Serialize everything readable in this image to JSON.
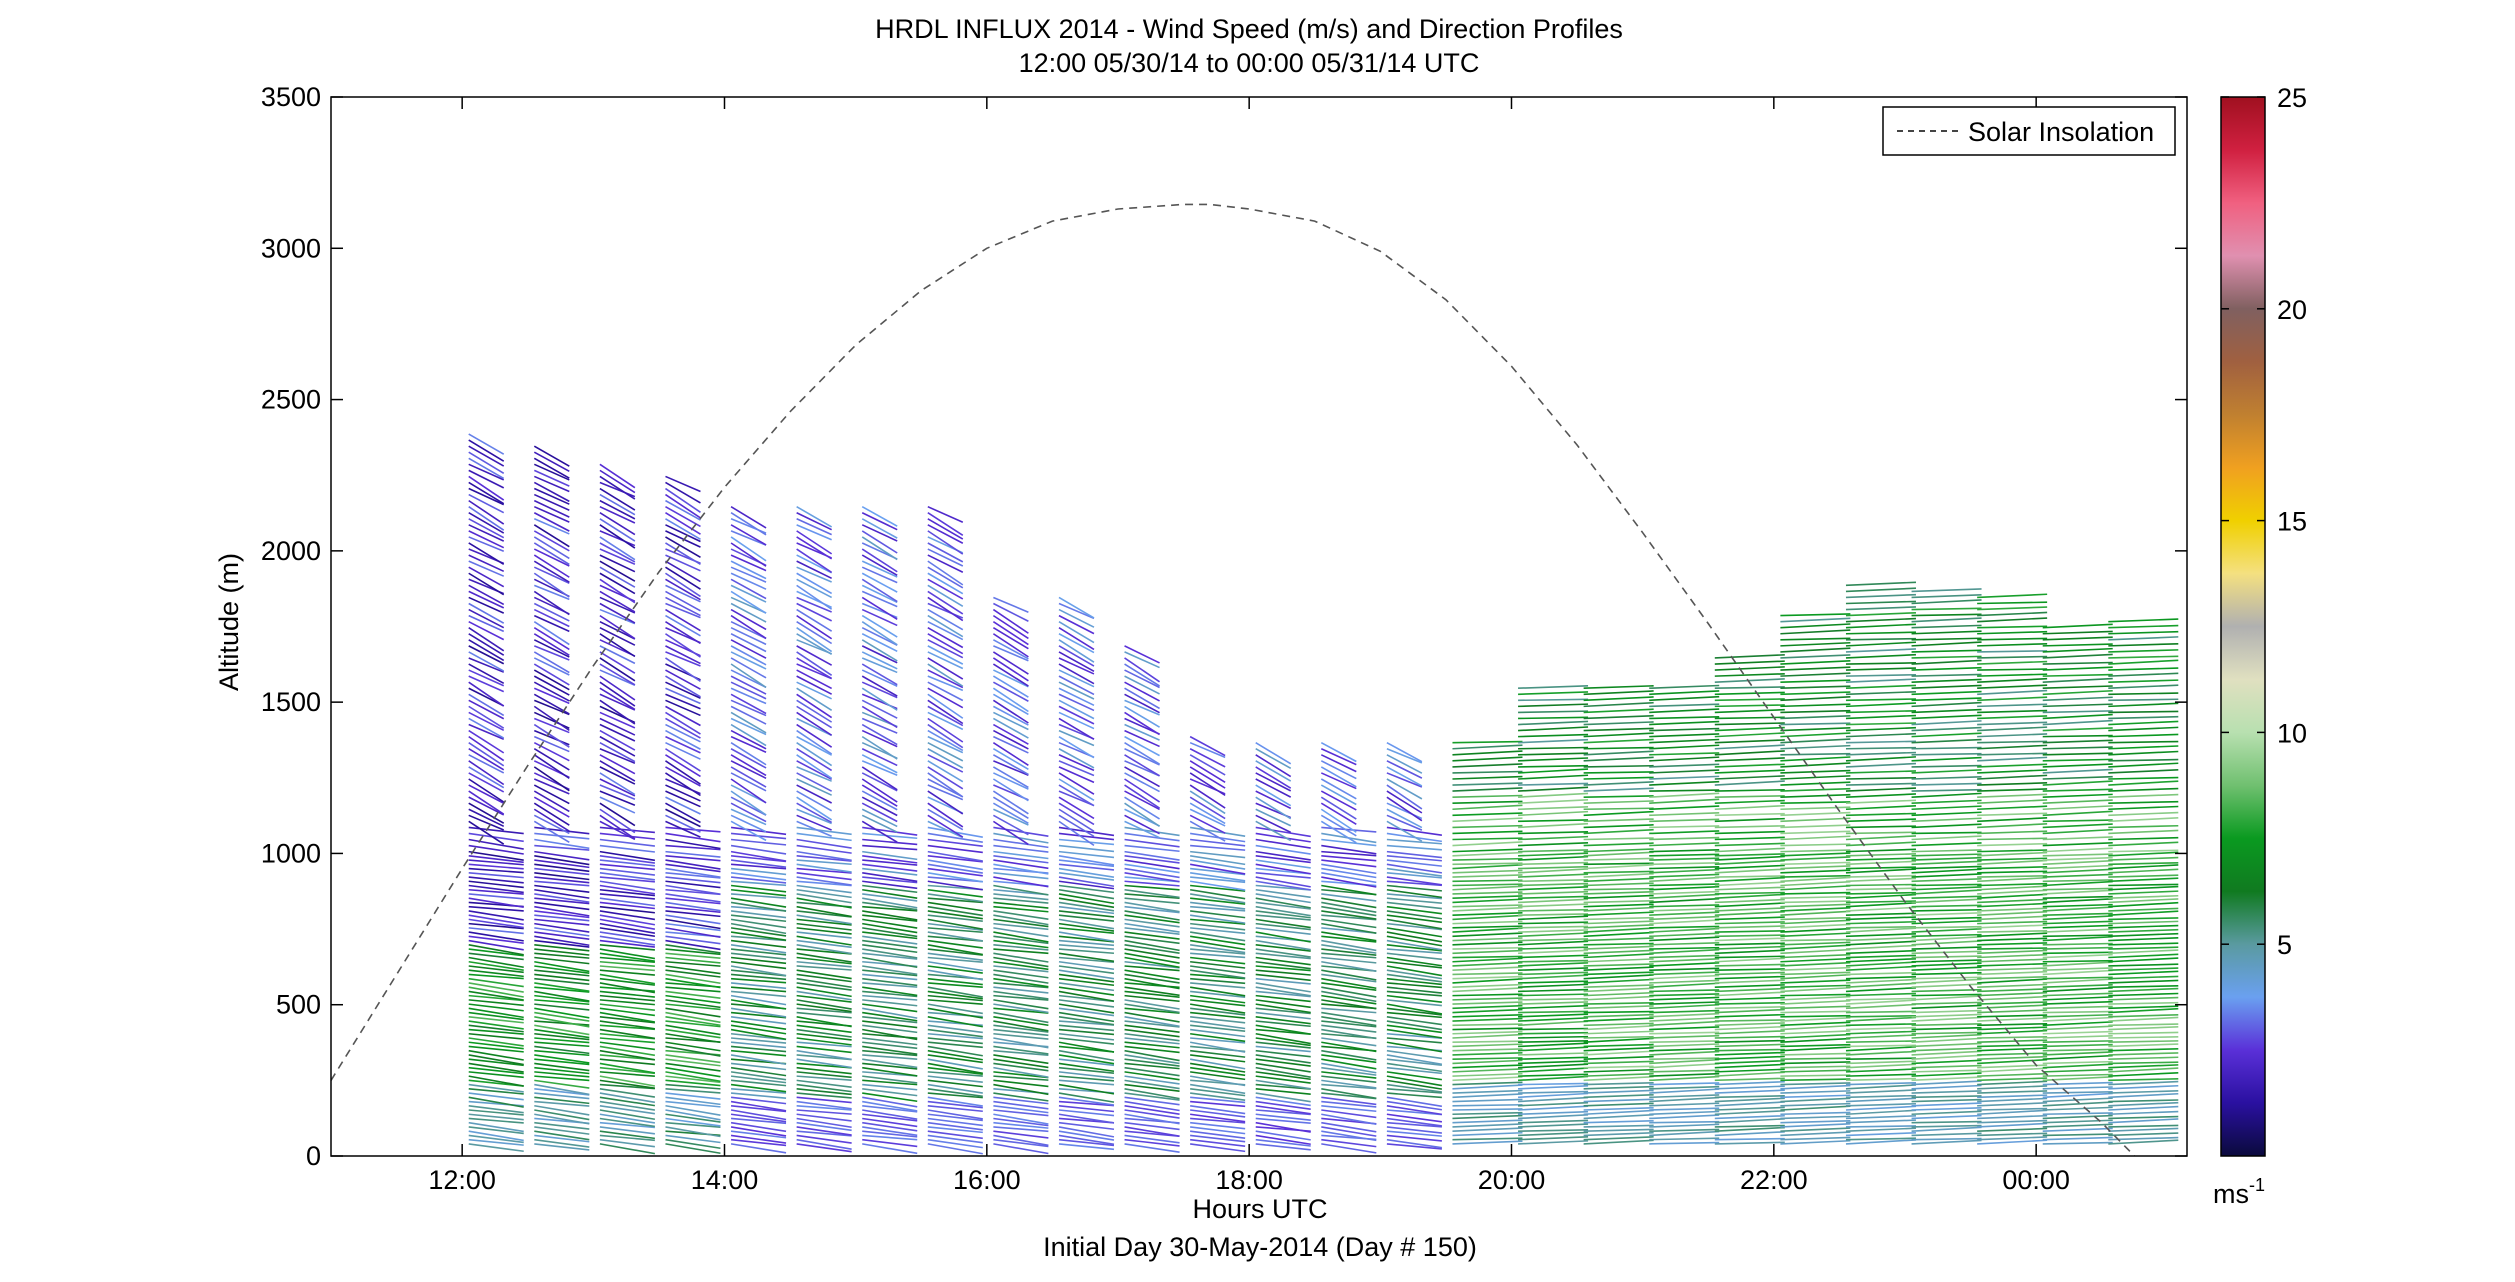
{
  "chart_data": {
    "type": "wind-barb-profile",
    "title": "HRDL INFLUX 2014 - Wind Speed (m/s) and Direction Profiles",
    "subtitle": "12:00 05/30/14 to 00:00 05/31/14  UTC",
    "xlabel": "Hours UTC",
    "xlabel2": "Initial Day 30-May-2014 (Day # 150)",
    "ylabel": "Altitude (m)",
    "xlim": [
      11,
      25.15
    ],
    "ylim": [
      0,
      3500
    ],
    "xticks": [
      12,
      14,
      16,
      18,
      20,
      22,
      24
    ],
    "xtick_labels": [
      "12:00",
      "14:00",
      "16:00",
      "18:00",
      "20:00",
      "22:00",
      "00:00"
    ],
    "yticks": [
      0,
      500,
      1000,
      1500,
      2000,
      2500,
      3000,
      3500
    ],
    "ytick_labels": [
      "0",
      "500",
      "1000",
      "1500",
      "2000",
      "2500",
      "3000",
      "3500"
    ],
    "legend": {
      "entries": [
        "Solar Insolation"
      ],
      "position": "top-right"
    },
    "colorbar": {
      "range": [
        0,
        25
      ],
      "ticks": [
        5,
        10,
        15,
        20,
        25
      ],
      "tick_labels": [
        "5",
        "10",
        "15",
        "20",
        "25"
      ],
      "unit_label": "ms",
      "unit_exponent": "-1",
      "stops": [
        "#0a0a3c",
        "#2a10a0",
        "#5a30d8",
        "#6aa0f0",
        "#5a9aa0",
        "#107a20",
        "#0a9a20",
        "#70c070",
        "#b8e0b0",
        "#e0e0c0",
        "#b0b0b0",
        "#f4e080",
        "#f0d000",
        "#f0a020",
        "#c08030",
        "#a06040",
        "#806060",
        "#e090b0",
        "#f06080",
        "#d02040",
        "#a01020"
      ]
    },
    "profile_times": [
      12.05,
      12.55,
      13.05,
      13.55,
      14.05,
      14.55,
      15.05,
      15.55,
      16.05,
      16.55,
      17.05,
      17.55,
      18.05,
      18.55,
      19.05,
      19.55,
      20.05,
      20.55,
      21.05,
      21.55,
      22.05,
      22.55,
      23.05,
      23.55,
      24.05,
      24.55
    ],
    "profile_tops": [
      2400,
      2350,
      2300,
      2250,
      2150,
      2150,
      2150,
      2150,
      1850,
      1850,
      1700,
      1400,
      1380,
      1380,
      1380,
      1380,
      1550,
      1550,
      1550,
      1650,
      1800,
      1900,
      1880,
      1860,
      1750,
      1780
    ],
    "solar_insolation": {
      "x": [
        11,
        11.5,
        12,
        12.5,
        13,
        13.5,
        14,
        14.5,
        15,
        15.5,
        16,
        16.5,
        17,
        17.5,
        17.7,
        18,
        18.5,
        19,
        19.5,
        20,
        20.5,
        21,
        21.5,
        22,
        22.5,
        23,
        23.5,
        24,
        24.5,
        24.75
      ],
      "y": [
        250,
        600,
        950,
        1290,
        1620,
        1930,
        2210,
        2460,
        2680,
        2860,
        3000,
        3090,
        3130,
        3145,
        3145,
        3130,
        3090,
        2990,
        2830,
        2610,
        2350,
        2060,
        1760,
        1450,
        1140,
        840,
        560,
        300,
        110,
        0
      ]
    }
  }
}
